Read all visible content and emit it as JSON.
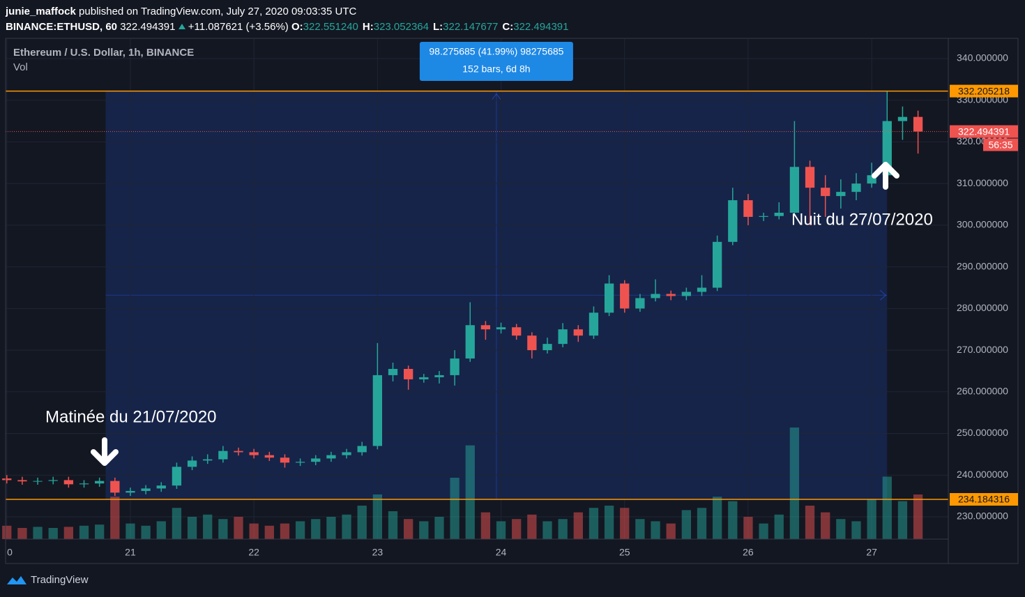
{
  "header": {
    "author": "junie_maffock",
    "published": "published on TradingView.com, July 27, 2020 09:03:35 UTC",
    "symbol": "BINANCE:ETHUSD, 60",
    "last": "322.494391",
    "change": "+11.087621 (+3.56%)",
    "ohlc": [
      {
        "label": "O:",
        "value": "322.551240"
      },
      {
        "label": "H:",
        "value": "323.052364"
      },
      {
        "label": "L:",
        "value": "322.147677"
      },
      {
        "label": "C:",
        "value": "322.494391"
      }
    ]
  },
  "chart_data": {
    "type": "candlestick",
    "title": "Ethereum / U.S. Dollar, 1h, BINANCE",
    "volume_label": "Vol",
    "x": [
      20,
      20.125,
      20.25,
      20.375,
      20.5,
      20.625,
      20.75,
      20.875,
      21,
      21.125,
      21.25,
      21.375,
      21.5,
      21.625,
      21.75,
      21.875,
      22,
      22.125,
      22.25,
      22.375,
      22.5,
      22.625,
      22.75,
      22.875,
      23,
      23.125,
      23.25,
      23.375,
      23.5,
      23.625,
      23.75,
      23.875,
      24,
      24.125,
      24.25,
      24.375,
      24.5,
      24.625,
      24.75,
      24.875,
      25,
      25.125,
      25.25,
      25.375,
      25.5,
      25.625,
      25.75,
      25.875,
      26,
      26.125,
      26.25,
      26.375,
      26.5,
      26.625,
      26.75,
      26.875,
      27,
      27.125,
      27.25,
      27.375
    ],
    "open": [
      239.2,
      238.8,
      238.5,
      238.6,
      238.8,
      237.8,
      238.0,
      238.6,
      235.8,
      236.2,
      236.8,
      237.5,
      242.0,
      243.5,
      243.8,
      245.8,
      245.5,
      244.8,
      244.2,
      243.0,
      243.2,
      244.0,
      244.8,
      245.5,
      247.0,
      264.0,
      265.5,
      263.0,
      263.5,
      264.0,
      268.0,
      276.0,
      275.0,
      275.5,
      273.5,
      270.0,
      271.5,
      275.0,
      273.5,
      279.0,
      286.0,
      280.0,
      282.5,
      283.5,
      283.0,
      284.0,
      285.0,
      296.0,
      306.0,
      302.0,
      302.2,
      303.0,
      314.0,
      309.0,
      307.0,
      308.0,
      310.0,
      312.0,
      325.0,
      326.0
    ],
    "high": [
      240.0,
      239.6,
      239.4,
      239.6,
      239.6,
      238.8,
      239.4,
      239.4,
      237.0,
      237.6,
      238.3,
      243.0,
      244.5,
      245.0,
      247.0,
      246.6,
      246.3,
      245.6,
      245.0,
      244.0,
      244.8,
      245.6,
      246.3,
      248.0,
      271.7,
      267.0,
      266.3,
      264.3,
      265.0,
      270.0,
      281.5,
      277.0,
      276.6,
      276.3,
      274.3,
      273.0,
      276.5,
      276.0,
      280.5,
      288.0,
      286.8,
      283.5,
      287.0,
      284.3,
      285.0,
      288.0,
      297.5,
      309.0,
      307.5,
      303.0,
      305.5,
      325.0,
      315.5,
      312.0,
      311.0,
      312.5,
      315.0,
      332.2,
      328.5,
      327.5
    ],
    "low": [
      238.0,
      237.7,
      237.7,
      237.8,
      237.0,
      237.0,
      237.2,
      235.0,
      235.0,
      235.4,
      236.0,
      236.7,
      241.2,
      242.7,
      243.0,
      244.7,
      244.0,
      243.4,
      241.8,
      242.2,
      242.4,
      243.2,
      244.0,
      244.7,
      246.2,
      262.5,
      260.5,
      262.2,
      262.0,
      261.5,
      267.2,
      272.5,
      274.0,
      272.5,
      268.0,
      269.2,
      270.7,
      272.0,
      272.7,
      278.2,
      279.0,
      279.2,
      281.7,
      282.0,
      282.0,
      283.0,
      284.2,
      295.2,
      300.0,
      301.0,
      301.4,
      302.2,
      300.0,
      302.0,
      304.0,
      306.0,
      309.0,
      311.2,
      320.5,
      317.2
    ],
    "close": [
      238.8,
      238.5,
      238.6,
      238.8,
      237.8,
      238.0,
      238.6,
      235.8,
      236.2,
      236.8,
      237.5,
      242.0,
      243.5,
      243.8,
      245.8,
      245.5,
      244.8,
      244.2,
      243.0,
      243.2,
      244.0,
      244.8,
      245.5,
      247.0,
      264.0,
      265.5,
      263.0,
      263.5,
      264.0,
      268.0,
      276.0,
      275.0,
      275.5,
      273.5,
      270.0,
      271.5,
      275.0,
      273.5,
      279.0,
      286.0,
      280.0,
      282.5,
      283.5,
      283.0,
      284.0,
      285.0,
      296.0,
      306.0,
      302.0,
      302.2,
      303.0,
      314.0,
      309.0,
      307.0,
      308.0,
      310.0,
      312.0,
      325.0,
      326.0,
      322.494391
    ],
    "volume": [
      12,
      10,
      11,
      10,
      11,
      12,
      13,
      38,
      14,
      12,
      16,
      28,
      20,
      22,
      18,
      20,
      14,
      12,
      14,
      16,
      18,
      20,
      22,
      30,
      40,
      25,
      18,
      16,
      20,
      55,
      84,
      24,
      16,
      18,
      22,
      16,
      18,
      24,
      28,
      30,
      28,
      18,
      16,
      14,
      26,
      28,
      38,
      34,
      20,
      14,
      22,
      100,
      30,
      24,
      18,
      16,
      36,
      56,
      34,
      40
    ],
    "volume_lim": [
      0,
      100
    ],
    "up_color": "#26a69a",
    "down_color": "#ef5350",
    "xlim": [
      19.99,
      27.62
    ],
    "xticks": [
      {
        "value": 20,
        "label": "0"
      },
      21,
      22,
      23,
      24,
      25,
      26,
      27
    ],
    "ylim": [
      224.64,
      344.69
    ],
    "yticks": [
      {
        "value": 230,
        "label": "230.000000"
      },
      {
        "value": 240,
        "label": "240.000000"
      },
      {
        "value": 250,
        "label": "250.000000"
      },
      {
        "value": 260,
        "label": "260.000000"
      },
      {
        "value": 270,
        "label": "270.000000"
      },
      {
        "value": 280,
        "label": "280.000000"
      },
      {
        "value": 290,
        "label": "290.000000"
      },
      {
        "value": 300,
        "label": "300.000000"
      },
      {
        "value": 310,
        "label": "310.000000"
      },
      {
        "value": 320,
        "label": "320.000000"
      },
      {
        "value": 330,
        "label": "330.000000"
      },
      {
        "value": 340,
        "label": "340.000000"
      }
    ],
    "grid": true,
    "hlines": [
      {
        "value": 332.205218,
        "label": "332.205218",
        "color": "#ff9800"
      },
      {
        "value": 234.184316,
        "label": "234.184316",
        "color": "#ff9800"
      }
    ],
    "last_price": {
      "value": 322.494391,
      "label": "322.494391",
      "countdown": "56:35",
      "color": "#ef5350"
    },
    "measure": {
      "x": [
        20.8,
        27.125
      ],
      "color": "#2962ff",
      "text": [
        "98.275685 (41.99%) 98275685",
        "152 bars, 6d 8h"
      ]
    },
    "annotations": [
      "Matinée du 21/07/2020",
      "Nuit du 27/07/2020"
    ]
  },
  "footer": "TradingView"
}
